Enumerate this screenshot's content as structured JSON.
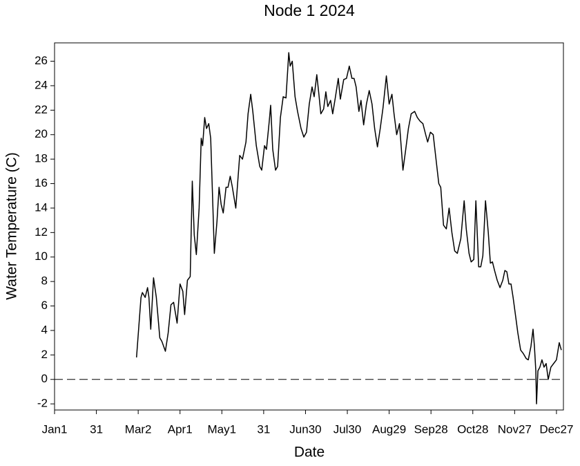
{
  "chart_data": {
    "type": "line",
    "title": "Node 1 2024",
    "x_label": "Date",
    "y_label": "Water Temperature (C)",
    "color": "#000000",
    "x": [
      58.8,
      62,
      63,
      65,
      66.7,
      67.7,
      69,
      71,
      73,
      75.5,
      77,
      79.5,
      81.5,
      83.5,
      85.4,
      87.9,
      90,
      92,
      93.3,
      95.3,
      97.3,
      98.8,
      100.2,
      101.7,
      103.7,
      105.2,
      106.2,
      107.7,
      109,
      110.6,
      112,
      113.6,
      114.6,
      116.5,
      118,
      119.5,
      121,
      123,
      124.4,
      126,
      127.4,
      130,
      132.8,
      134.8,
      137.3,
      138.8,
      140.7,
      142.2,
      144.7,
      147.2,
      148.6,
      150.6,
      152,
      154,
      155,
      156.5,
      158.5,
      160,
      162,
      164,
      166,
      168,
      169,
      170.5,
      172.5,
      174.3,
      176.8,
      178.8,
      180.7,
      182.7,
      184.7,
      186.2,
      188.1,
      189.6,
      191,
      193,
      194.6,
      196,
      198,
      199.5,
      201.5,
      203.5,
      205,
      207.4,
      209.4,
      211.4,
      213.3,
      214.8,
      216.3,
      218.3,
      219.8,
      221.7,
      223.7,
      225.7,
      227.7,
      229.6,
      231.6,
      233.6,
      235.6,
      238,
      240,
      242,
      243.5,
      245.4,
      247.4,
      249.9,
      251.9,
      253.8,
      255.8,
      258.3,
      260.2,
      262.2,
      264.2,
      266.2,
      267.6,
      269.6,
      271.6,
      273.6,
      275.6,
      277,
      279,
      281,
      283,
      285,
      287,
      288.9,
      291.4,
      293.8,
      295.3,
      297.3,
      298.8,
      300.7,
      302.2,
      304.2,
      305.7,
      307.2,
      309.1,
      311.1,
      312.6,
      314.1,
      315.6,
      317.5,
      319.5,
      321.5,
      323,
      324.4,
      325.9,
      327.4,
      328.9,
      330.9,
      332.3,
      334.3,
      336.3,
      338.3,
      339.8,
      341.7,
      343.2,
      344.2,
      345.2,
      345.7,
      346.7,
      348.1,
      349.6,
      351.1,
      352.6,
      354.1,
      356,
      358,
      360,
      362,
      363.5
    ],
    "values": [
      1.8,
      6.7,
      7.1,
      6.7,
      7.5,
      6.7,
      4.1,
      8.3,
      6.7,
      3.4,
      3.1,
      2.3,
      3.8,
      6.1,
      6.3,
      4.6,
      7.8,
      7.2,
      5.3,
      8.1,
      8.4,
      16.2,
      11.8,
      10.2,
      14,
      19.7,
      19.1,
      21.4,
      20.5,
      20.9,
      19.7,
      14,
      10.3,
      12.9,
      15.7,
      14.3,
      13.6,
      15.7,
      15.7,
      16.6,
      15.8,
      14,
      18.3,
      18,
      19.4,
      21.7,
      23.3,
      21.9,
      19.1,
      17.4,
      17.1,
      19.1,
      18.8,
      21.1,
      22.4,
      18.8,
      17.1,
      17.4,
      21.4,
      23.1,
      23,
      26.7,
      25.6,
      26,
      23.1,
      21.9,
      20.5,
      19.8,
      20.2,
      22.5,
      23.9,
      23.1,
      24.9,
      23.3,
      21.7,
      22.1,
      23.5,
      22.3,
      22.8,
      21.7,
      23.1,
      24.6,
      22.9,
      24.5,
      24.6,
      25.6,
      24.6,
      24.6,
      23.9,
      21.9,
      22.8,
      20.8,
      22.5,
      23.6,
      22.5,
      20.5,
      19,
      20.5,
      22.2,
      24.8,
      22.5,
      23.3,
      21.7,
      20,
      20.9,
      17.1,
      18.8,
      20.5,
      21.7,
      21.9,
      21.4,
      21.1,
      20.9,
      20,
      19.4,
      20.2,
      20,
      18,
      16,
      15.7,
      12.6,
      12.3,
      14,
      12,
      10.5,
      10.3,
      11.5,
      14.6,
      12.3,
      10.3,
      9.6,
      9.8,
      14.6,
      9.2,
      9.2,
      10.1,
      14.6,
      12,
      9.5,
      9.6,
      8.9,
      8.1,
      7.5,
      8.1,
      8.9,
      8.8,
      7.8,
      7.8,
      6.7,
      5,
      3.8,
      2.4,
      2.1,
      1.7,
      1.6,
      2.7,
      4.1,
      2.7,
      0.7,
      -2,
      0.7,
      1,
      1.6,
      1,
      1.3,
      0,
      1,
      1.3,
      1.6,
      3,
      2.4
    ],
    "xlim": [
      0,
      365
    ],
    "ylim": [
      -2.5,
      27.5
    ],
    "xticks": [
      {
        "value": 0,
        "label": "Jan1"
      },
      {
        "value": 30,
        "label": "31"
      },
      {
        "value": 60,
        "label": "Mar2"
      },
      {
        "value": 90,
        "label": "Apr1"
      },
      {
        "value": 120,
        "label": "May1"
      },
      {
        "value": 150,
        "label": "31"
      },
      {
        "value": 180,
        "label": "Jun30"
      },
      {
        "value": 210,
        "label": "Jul30"
      },
      {
        "value": 240,
        "label": "Aug29"
      },
      {
        "value": 270,
        "label": "Sep28"
      },
      {
        "value": 300,
        "label": "Oct28"
      },
      {
        "value": 330,
        "label": "Nov27"
      },
      {
        "value": 360,
        "label": "Dec27"
      }
    ],
    "yticks": [
      -2,
      0,
      2,
      4,
      6,
      8,
      10,
      12,
      14,
      16,
      18,
      20,
      22,
      24,
      26
    ],
    "reference_line": {
      "y": 0,
      "style": "dashed"
    }
  }
}
